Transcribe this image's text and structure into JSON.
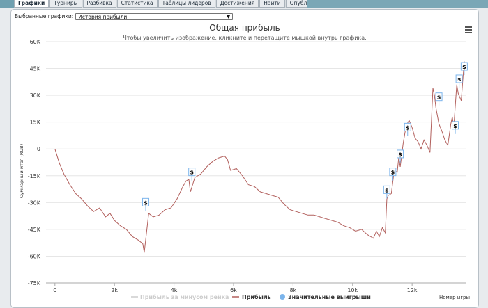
{
  "tabs": [
    {
      "label": "Графики",
      "active": true
    },
    {
      "label": "Турниры",
      "active": false
    },
    {
      "label": "Разбивка",
      "active": false
    },
    {
      "label": "Статистика",
      "active": false
    },
    {
      "label": "Таблицы лидеров",
      "active": false
    },
    {
      "label": "Достижения",
      "active": false
    },
    {
      "label": "Найти",
      "active": false
    },
    {
      "label": "Опубликовать",
      "active": false
    }
  ],
  "selector": {
    "label": "Выбранные графики:",
    "value": "История прибыли"
  },
  "chart_data": {
    "type": "line",
    "title": "Общая прибыль",
    "subtitle": "Чтобы увеличить изображение, кликните и перетащите мышкой внутрь графика.",
    "xlabel": "Номер игры",
    "ylabel": "Суммарный итог (RUB)",
    "ylim": [
      -75000,
      60000
    ],
    "xlim": [
      -300,
      13800
    ],
    "yticks": [
      60000,
      45000,
      30000,
      15000,
      0,
      -15000,
      -30000,
      -45000,
      -60000,
      -75000
    ],
    "ytick_labels": [
      "60K",
      "45K",
      "30K",
      "15K",
      "0",
      "-15K",
      "-30K",
      "-45K",
      "-60K",
      "-75K"
    ],
    "xticks": [
      0,
      2000,
      4000,
      6000,
      8000,
      10000,
      12000
    ],
    "xtick_labels": [
      "0",
      "2k",
      "4k",
      "6k",
      "8k",
      "10k",
      "12k"
    ],
    "grid": true,
    "legend": [
      {
        "name": "Прибыль за минусом рейка",
        "color": "#cccccc",
        "hidden": true
      },
      {
        "name": "Прибыль",
        "color": "#b2605d",
        "hidden": false
      },
      {
        "name": "Значительные выигрыши",
        "color": "#7cb5ec",
        "hidden": false
      }
    ],
    "legend_position": "bottom",
    "series": [
      {
        "name": "Прибыль",
        "color": "#b2605d",
        "x": [
          0,
          150,
          300,
          500,
          700,
          900,
          1100,
          1300,
          1500,
          1700,
          1850,
          2000,
          2200,
          2400,
          2600,
          2800,
          2950,
          3000,
          3150,
          3300,
          3500,
          3700,
          3900,
          4100,
          4300,
          4400,
          4500,
          4550,
          4700,
          4900,
          5100,
          5300,
          5500,
          5700,
          5800,
          5900,
          6100,
          6300,
          6500,
          6700,
          6900,
          7100,
          7300,
          7500,
          7700,
          7900,
          8100,
          8300,
          8500,
          8700,
          8900,
          9100,
          9300,
          9500,
          9700,
          9900,
          10100,
          10300,
          10500,
          10700,
          10800,
          10900,
          11000,
          11100,
          11150,
          11200,
          11300,
          11400,
          11500,
          11550,
          11600,
          11700,
          11800,
          11900,
          12000,
          12100,
          12200,
          12300,
          12400,
          12500,
          12600,
          12700,
          12750,
          12800,
          12900,
          13000,
          13100,
          13200,
          13300,
          13350,
          13400,
          13500,
          13550,
          13650,
          13750
        ],
        "y": [
          0,
          -8000,
          -14000,
          -20000,
          -25000,
          -28000,
          -32000,
          -35000,
          -33000,
          -38000,
          -36000,
          -40000,
          -43000,
          -45000,
          -49000,
          -51000,
          -53000,
          -58000,
          -36000,
          -38000,
          -37000,
          -34000,
          -33000,
          -28000,
          -21000,
          -18000,
          -17000,
          -24000,
          -16000,
          -14000,
          -10000,
          -7000,
          -5000,
          -4000,
          -6000,
          -12000,
          -11000,
          -15000,
          -20000,
          -21000,
          -24000,
          -25000,
          -26000,
          -27000,
          -31000,
          -34000,
          -35000,
          -36000,
          -37000,
          -37000,
          -38000,
          -39000,
          -40000,
          -41000,
          -43000,
          -44000,
          -46000,
          -45000,
          -48000,
          -50000,
          -46000,
          -49000,
          -44000,
          -47000,
          -28000,
          -26000,
          -25000,
          -12000,
          -13000,
          -5000,
          -10000,
          3000,
          13000,
          16000,
          12000,
          6000,
          4000,
          0,
          5000,
          2000,
          -2000,
          34000,
          30000,
          23000,
          14000,
          10000,
          5000,
          2000,
          14000,
          18000,
          12000,
          36000,
          31000,
          27000,
          49000
        ]
      }
    ],
    "markers": [
      {
        "x": 3050,
        "y": -30000,
        "label": "$"
      },
      {
        "x": 4600,
        "y": -13000,
        "label": "$"
      },
      {
        "x": 11150,
        "y": -23000,
        "label": "$"
      },
      {
        "x": 11350,
        "y": -13000,
        "label": "$"
      },
      {
        "x": 11600,
        "y": -3000,
        "label": "$"
      },
      {
        "x": 11850,
        "y": 12000,
        "label": "$"
      },
      {
        "x": 12900,
        "y": 29000,
        "label": "$"
      },
      {
        "x": 13450,
        "y": 13000,
        "label": "$"
      },
      {
        "x": 13580,
        "y": 39000,
        "label": "$"
      },
      {
        "x": 13750,
        "y": 46000,
        "label": "$"
      }
    ]
  }
}
